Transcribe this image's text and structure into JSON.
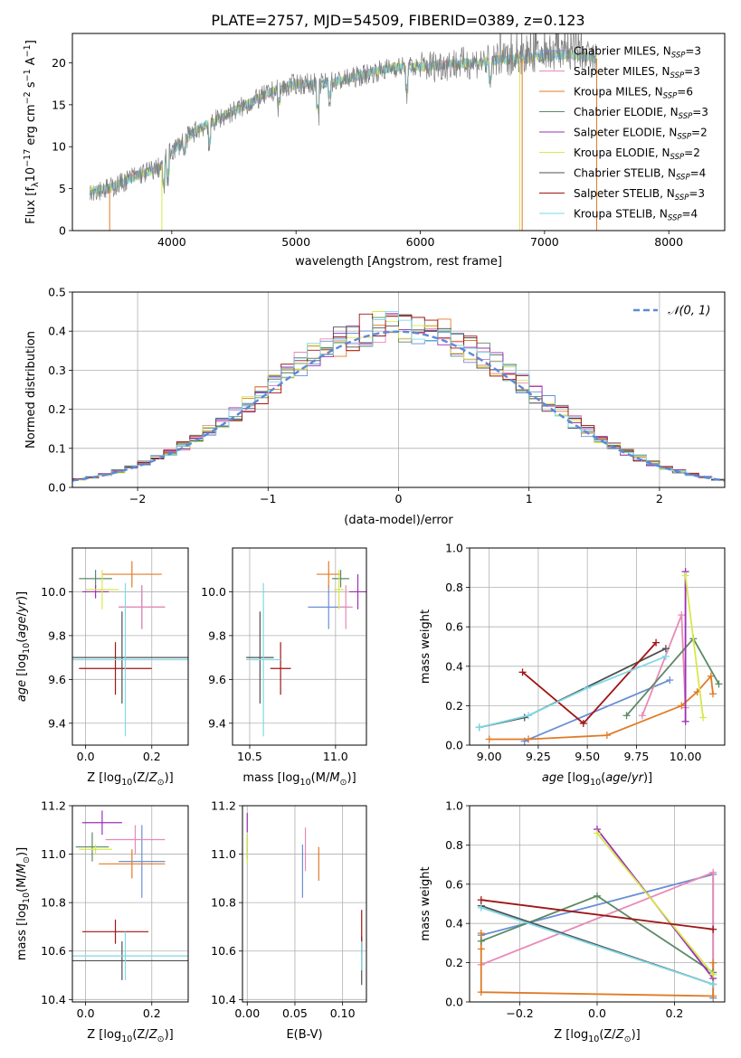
{
  "figure": {
    "title": "PLATE=2757, MJD=54509, FIBERID=0389, z=0.123"
  },
  "colors": {
    "Chabrier MILES": "#6a8fd4",
    "Salpeter MILES": "#e889b6",
    "Kroupa MILES": "#e07b27",
    "Chabrier ELODIE": "#5b8a63",
    "Salpeter ELODIE": "#9b2fb6",
    "Kroupa ELODIE": "#d6e84a",
    "Chabrier STELIB": "#505050",
    "Salpeter STELIB": "#a01515",
    "Kroupa STELIB": "#7fd9e6",
    "normal": "#5a8ad8"
  },
  "chart_data": [
    {
      "id": "spectrum",
      "type": "line",
      "xlabel": "wavelength [Angstrom, rest frame]",
      "ylabel": "Flux [f_λ 10^-17 erg cm^-2 s^-1 A^-1]",
      "xlim": [
        3200,
        8450
      ],
      "ylim": [
        0,
        23.5
      ],
      "xticks": [
        4000,
        5000,
        6000,
        7000,
        8000
      ],
      "yticks": [
        0,
        5,
        10,
        15,
        20
      ],
      "grid": false,
      "legend_position": "right",
      "data_range": [
        3340,
        7420
      ],
      "envelope": {
        "x": [
          3340,
          3500,
          3700,
          3900,
          4000,
          4200,
          4400,
          4600,
          4800,
          5000,
          5200,
          5400,
          5600,
          5800,
          6000,
          6200,
          6400,
          6600,
          6800,
          7000,
          7200,
          7420
        ],
        "y": [
          4.8,
          5.0,
          6.5,
          7.5,
          9.5,
          12.0,
          13.5,
          15.0,
          16.5,
          17.5,
          17.5,
          18.0,
          18.8,
          19.5,
          19.5,
          19.8,
          20.0,
          20.3,
          20.5,
          20.8,
          21.0,
          20.5
        ]
      },
      "series": [
        {
          "name": "Chabrier MILES, N_SSP=3",
          "label": "Chabrier MILES, N",
          "n": "3"
        },
        {
          "name": "Salpeter MILES, N_SSP=3",
          "label": "Salpeter MILES, N",
          "n": "3"
        },
        {
          "name": "Kroupa MILES, N_SSP=6",
          "label": "Kroupa MILES, N",
          "n": "6"
        },
        {
          "name": "Chabrier ELODIE, N_SSP=3",
          "label": "Chabrier ELODIE, N",
          "n": "3"
        },
        {
          "name": "Salpeter ELODIE, N_SSP=2",
          "label": "Salpeter ELODIE, N",
          "n": "2"
        },
        {
          "name": "Kroupa ELODIE, N_SSP=2",
          "label": "Kroupa ELODIE, N",
          "n": "2"
        },
        {
          "name": "Chabrier STELIB, N_SSP=4",
          "label": "Chabrier STELIB, N",
          "n": "4"
        },
        {
          "name": "Salpeter STELIB, N_SSP=3",
          "label": "Salpeter STELIB, N",
          "n": "3"
        },
        {
          "name": "Kroupa STELIB, N_SSP=4",
          "label": "Kroupa STELIB, N",
          "n": "4"
        }
      ]
    },
    {
      "id": "residuals",
      "type": "bar",
      "xlabel": "(data-model)/error",
      "ylabel": "Normed distribution",
      "xlim": [
        -2.5,
        2.5
      ],
      "ylim": [
        0,
        0.5
      ],
      "xticks": [
        -2,
        -1,
        0,
        1,
        2
      ],
      "yticks": [
        0.0,
        0.1,
        0.2,
        0.3,
        0.4,
        0.5
      ],
      "grid": true,
      "legend_position": "upper right",
      "normal_label": "𝒩(0, 1)",
      "bin_width": 0.1
    },
    {
      "id": "age_vs_Z",
      "type": "scatter",
      "xlabel": "Z [log10(Z/Z⊙)]",
      "ylabel": "age [log10(age/yr)]",
      "xlim": [
        -0.04,
        0.31
      ],
      "ylim": [
        9.3,
        10.2
      ],
      "xticks": [
        0.0,
        0.2
      ],
      "yticks": [
        9.4,
        9.6,
        9.8,
        10.0
      ],
      "grid": true,
      "points": [
        {
          "name": "Chabrier MILES",
          "x": 0.17,
          "xerr": 0.07,
          "y": 9.93,
          "yerr": 0.1
        },
        {
          "name": "Salpeter MILES",
          "x": 0.17,
          "xerr": 0.07,
          "y": 9.93,
          "yerr": 0.1
        },
        {
          "name": "Kroupa MILES",
          "x": 0.14,
          "xerr": 0.09,
          "y": 10.08,
          "yerr": 0.06
        },
        {
          "name": "Chabrier ELODIE",
          "x": 0.03,
          "xerr": 0.05,
          "y": 10.06,
          "yerr": 0.04
        },
        {
          "name": "Salpeter ELODIE",
          "x": 0.03,
          "xerr": 0.04,
          "y": 10.0,
          "yerr": 0.03
        },
        {
          "name": "Kroupa ELODIE",
          "x": 0.05,
          "xerr": 0.05,
          "y": 10.01,
          "yerr": 0.09
        },
        {
          "name": "Chabrier STELIB",
          "x": 0.11,
          "xerr": 0.2,
          "y": 9.7,
          "yerr": 0.21
        },
        {
          "name": "Salpeter STELIB",
          "x": 0.09,
          "xerr": 0.11,
          "y": 9.65,
          "yerr": 0.12
        },
        {
          "name": "Kroupa STELIB",
          "x": 0.12,
          "xerr": 0.2,
          "y": 9.69,
          "yerr": 0.35
        }
      ]
    },
    {
      "id": "age_vs_mass",
      "type": "scatter",
      "xlabel": "mass [log10(M/M⊙)]",
      "ylabel": "",
      "xlim": [
        10.4,
        11.18
      ],
      "ylim": [
        9.3,
        10.2
      ],
      "xticks": [
        10.5,
        11.0
      ],
      "yticks": [
        9.4,
        9.6,
        9.8,
        10.0
      ],
      "grid": true,
      "points": [
        {
          "name": "Chabrier MILES",
          "x": 10.96,
          "xerr": 0.12,
          "y": 9.93,
          "yerr": 0.1
        },
        {
          "name": "Salpeter MILES",
          "x": 11.06,
          "xerr": 0.04,
          "y": 9.93,
          "yerr": 0.1
        },
        {
          "name": "Kroupa MILES",
          "x": 10.96,
          "xerr": 0.07,
          "y": 10.08,
          "yerr": 0.06
        },
        {
          "name": "Chabrier ELODIE",
          "x": 11.03,
          "xerr": 0.05,
          "y": 10.06,
          "yerr": 0.04
        },
        {
          "name": "Salpeter ELODIE",
          "x": 11.13,
          "xerr": 0.05,
          "y": 10.0,
          "yerr": 0.08
        },
        {
          "name": "Kroupa ELODIE",
          "x": 11.02,
          "xerr": 0.03,
          "y": 10.01,
          "yerr": 0.09
        },
        {
          "name": "Chabrier STELIB",
          "x": 10.56,
          "xerr": 0.08,
          "y": 9.7,
          "yerr": 0.21
        },
        {
          "name": "Salpeter STELIB",
          "x": 10.68,
          "xerr": 0.06,
          "y": 9.65,
          "yerr": 0.12
        },
        {
          "name": "Kroupa STELIB",
          "x": 10.58,
          "xerr": 0.1,
          "y": 9.69,
          "yerr": 0.35
        }
      ]
    },
    {
      "id": "weight_vs_age",
      "type": "line",
      "xlabel": "age [log10(age/yr)]",
      "ylabel": "mass weight",
      "xlim": [
        8.9,
        10.2
      ],
      "ylim": [
        0,
        1.0
      ],
      "xticks": [
        9.0,
        9.25,
        9.5,
        9.75,
        10.0
      ],
      "yticks": [
        0.0,
        0.2,
        0.4,
        0.6,
        0.8,
        1.0
      ],
      "grid": true,
      "series": [
        {
          "name": "Chabrier MILES",
          "x": [
            9.18,
            9.92
          ],
          "y": [
            0.02,
            0.33
          ]
        },
        {
          "name": "Salpeter MILES",
          "x": [
            9.78,
            9.98,
            10.0
          ],
          "y": [
            0.15,
            0.66,
            0.19
          ]
        },
        {
          "name": "Kroupa MILES",
          "x": [
            9.0,
            9.2,
            9.6,
            9.98,
            10.06,
            10.13,
            10.14
          ],
          "y": [
            0.03,
            0.03,
            0.05,
            0.2,
            0.27,
            0.35,
            0.26
          ]
        },
        {
          "name": "Chabrier ELODIE",
          "x": [
            9.7,
            10.04,
            10.17
          ],
          "y": [
            0.15,
            0.54,
            0.31
          ]
        },
        {
          "name": "Salpeter ELODIE",
          "x": [
            10.0,
            10.0
          ],
          "y": [
            0.88,
            0.12
          ]
        },
        {
          "name": "Kroupa ELODIE",
          "x": [
            10.0,
            10.09
          ],
          "y": [
            0.86,
            0.14
          ]
        },
        {
          "name": "Chabrier STELIB",
          "x": [
            8.95,
            9.18,
            9.9
          ],
          "y": [
            0.09,
            0.14,
            0.49
          ]
        },
        {
          "name": "Salpeter STELIB",
          "x": [
            9.17,
            9.48,
            9.85
          ],
          "y": [
            0.37,
            0.11,
            0.52
          ]
        },
        {
          "name": "Kroupa STELIB",
          "x": [
            8.95,
            9.2,
            9.5,
            9.9
          ],
          "y": [
            0.09,
            0.15,
            0.29,
            0.45
          ]
        }
      ]
    },
    {
      "id": "mass_vs_Z",
      "type": "scatter",
      "xlabel": "Z [log10(Z/Z⊙)]",
      "ylabel": "mass [log10(M/M⊙)]",
      "xlim": [
        -0.04,
        0.31
      ],
      "ylim": [
        10.39,
        11.2
      ],
      "xticks": [
        0.0,
        0.2
      ],
      "yticks": [
        10.4,
        10.6,
        10.8,
        11.0,
        11.2
      ],
      "grid": true,
      "points": [
        {
          "name": "Chabrier MILES",
          "x": 0.17,
          "xerr": 0.07,
          "y": 10.97,
          "yerr": 0.15
        },
        {
          "name": "Salpeter MILES",
          "x": 0.15,
          "xerr": 0.09,
          "y": 11.06,
          "yerr": 0.06
        },
        {
          "name": "Kroupa MILES",
          "x": 0.14,
          "xerr": 0.1,
          "y": 10.96,
          "yerr": 0.06
        },
        {
          "name": "Chabrier ELODIE",
          "x": 0.02,
          "xerr": 0.05,
          "y": 11.03,
          "yerr": 0.06
        },
        {
          "name": "Salpeter ELODIE",
          "x": 0.05,
          "xerr": 0.06,
          "y": 11.13,
          "yerr": 0.05
        },
        {
          "name": "Kroupa ELODIE",
          "x": 0.03,
          "xerr": 0.05,
          "y": 11.02,
          "yerr": 0.02
        },
        {
          "name": "Chabrier STELIB",
          "x": 0.11,
          "xerr": 0.2,
          "y": 10.56,
          "yerr": 0.08
        },
        {
          "name": "Salpeter STELIB",
          "x": 0.09,
          "xerr": 0.1,
          "y": 10.68,
          "yerr": 0.05
        },
        {
          "name": "Kroupa STELIB",
          "x": 0.12,
          "xerr": 0.2,
          "y": 10.58,
          "yerr": 0.1
        }
      ]
    },
    {
      "id": "mass_vs_ebv",
      "type": "scatter",
      "xlabel": "E(B-V)",
      "ylabel": "",
      "xlim": [
        -0.005,
        0.125
      ],
      "ylim": [
        10.39,
        11.2
      ],
      "xticks": [
        0.0,
        0.05,
        0.1
      ],
      "yticks": [
        10.4,
        10.6,
        10.8,
        11.0,
        11.2
      ],
      "grid": true,
      "points": [
        {
          "name": "Chabrier MILES",
          "x": 0.058,
          "y": 10.93,
          "yerr": 0.11
        },
        {
          "name": "Salpeter MILES",
          "x": 0.061,
          "y": 11.02,
          "yerr": 0.09
        },
        {
          "name": "Kroupa MILES",
          "x": 0.075,
          "y": 10.96,
          "yerr": 0.07
        },
        {
          "name": "Chabrier ELODIE",
          "x": 0.0,
          "y": 11.03,
          "yerr": 0.05
        },
        {
          "name": "Salpeter ELODIE",
          "x": 0.0,
          "y": 11.13,
          "yerr": 0.04
        },
        {
          "name": "Kroupa ELODIE",
          "x": 0.0,
          "y": 11.02,
          "yerr": 0.06
        },
        {
          "name": "Chabrier STELIB",
          "x": 0.12,
          "y": 10.56,
          "yerr": 0.1
        },
        {
          "name": "Salpeter STELIB",
          "x": 0.12,
          "y": 10.68,
          "yerr": 0.09
        },
        {
          "name": "Kroupa STELIB",
          "x": 0.12,
          "y": 10.58,
          "yerr": 0.06
        }
      ]
    },
    {
      "id": "weight_vs_Z",
      "type": "line",
      "xlabel": "Z [log10(Z/Z⊙)]",
      "ylabel": "mass weight",
      "xlim": [
        -0.33,
        0.33
      ],
      "ylim": [
        0,
        1.0
      ],
      "xticks": [
        -0.2,
        0.0,
        0.2
      ],
      "yticks": [
        0.0,
        0.2,
        0.4,
        0.6,
        0.8,
        1.0
      ],
      "grid": true,
      "series": [
        {
          "name": "Chabrier MILES",
          "x": [
            -0.3,
            0.3,
            0.3
          ],
          "y": [
            0.34,
            0.65,
            0.02
          ]
        },
        {
          "name": "Salpeter MILES",
          "x": [
            -0.3,
            0.3,
            0.3
          ],
          "y": [
            0.19,
            0.66,
            0.15
          ]
        },
        {
          "name": "Kroupa MILES",
          "x": [
            -0.3,
            -0.3,
            -0.3,
            0.3,
            0.3
          ],
          "y": [
            0.35,
            0.27,
            0.05,
            0.03,
            0.2
          ]
        },
        {
          "name": "Chabrier ELODIE",
          "x": [
            -0.3,
            0.0,
            0.3
          ],
          "y": [
            0.31,
            0.54,
            0.15
          ]
        },
        {
          "name": "Salpeter ELODIE",
          "x": [
            0.0,
            0.3
          ],
          "y": [
            0.88,
            0.12
          ]
        },
        {
          "name": "Kroupa ELODIE",
          "x": [
            0.0,
            0.3
          ],
          "y": [
            0.86,
            0.14
          ]
        },
        {
          "name": "Chabrier STELIB",
          "x": [
            -0.3,
            0.3
          ],
          "y": [
            0.49,
            0.09
          ]
        },
        {
          "name": "Salpeter STELIB",
          "x": [
            -0.3,
            0.3
          ],
          "y": [
            0.52,
            0.37
          ]
        },
        {
          "name": "Kroupa STELIB",
          "x": [
            -0.3,
            0.3
          ],
          "y": [
            0.48,
            0.09
          ]
        }
      ]
    }
  ]
}
